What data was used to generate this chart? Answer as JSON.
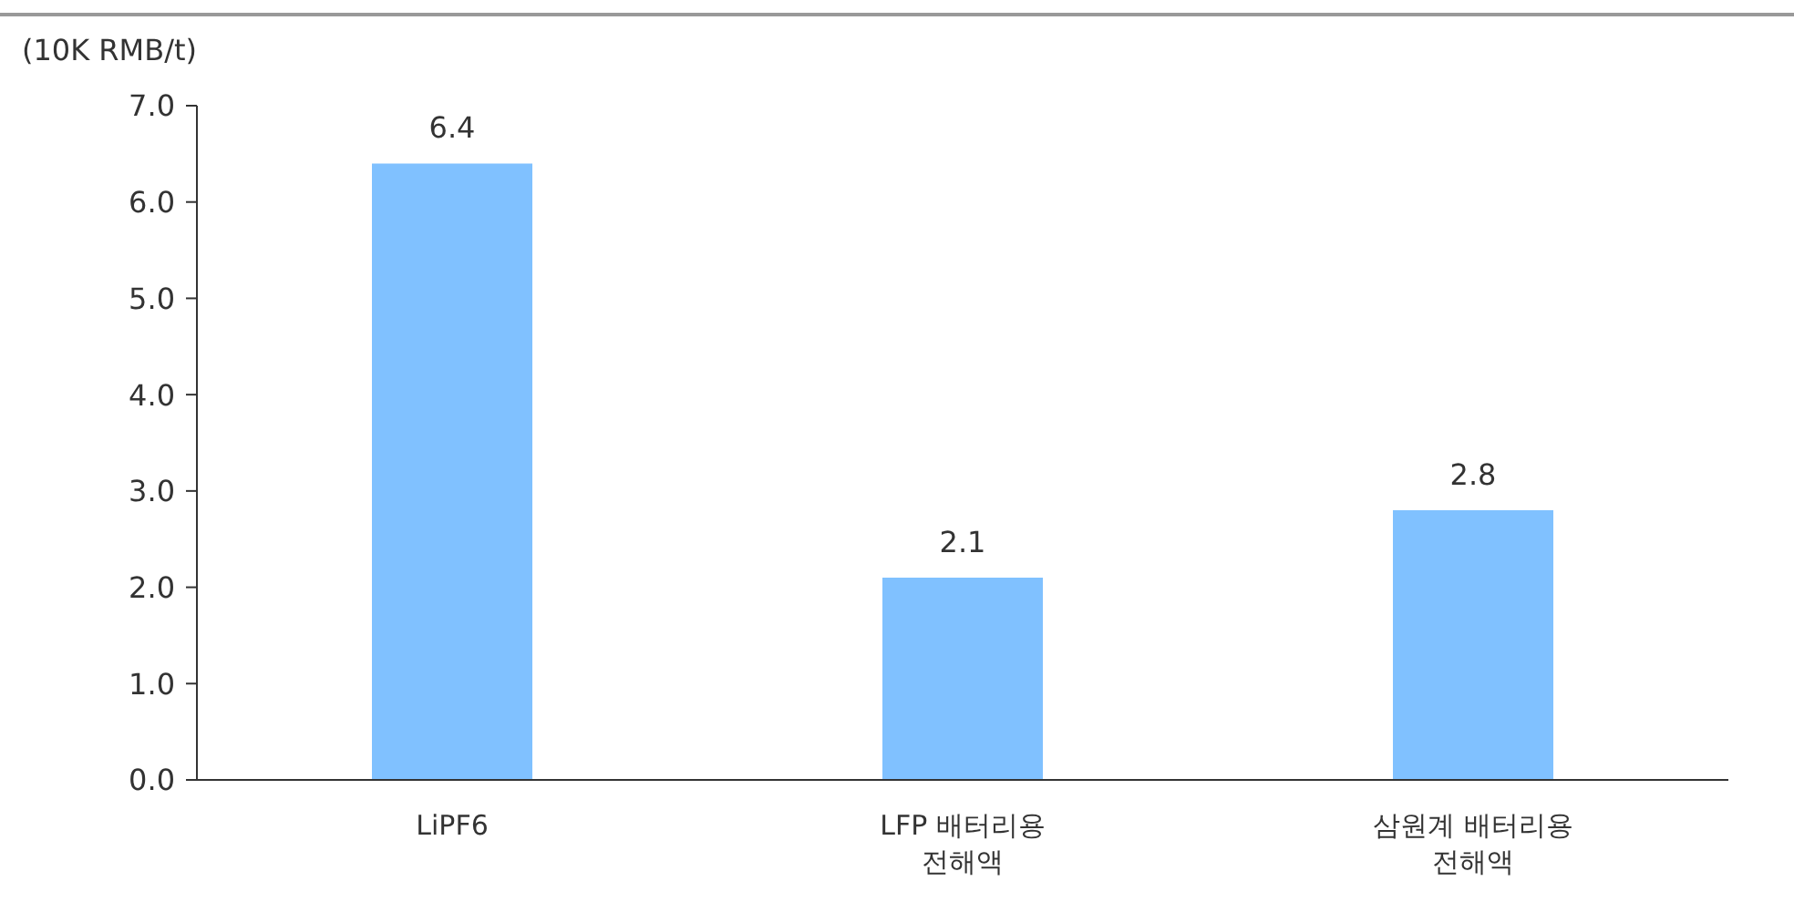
{
  "chart_data": {
    "type": "bar",
    "ylabel": "(10K RMB/t)",
    "categories": [
      "LiPF6",
      "LFP 배터리용 전해액",
      "삼원계 배터리용 전해액"
    ],
    "values": [
      6.4,
      2.1,
      2.8
    ],
    "color": "#80c1ff",
    "ylim": [
      0,
      7
    ],
    "yticks": [
      {
        "value": 0,
        "label": "0.0"
      },
      {
        "value": 1,
        "label": "1.0"
      },
      {
        "value": 2,
        "label": "2.0"
      },
      {
        "value": 3,
        "label": "3.0"
      },
      {
        "value": 4,
        "label": "4.0"
      },
      {
        "value": 5,
        "label": "5.0"
      },
      {
        "value": 6,
        "label": "6.0"
      },
      {
        "value": 7,
        "label": "7.0"
      }
    ],
    "data_labels": true,
    "grid": false
  }
}
